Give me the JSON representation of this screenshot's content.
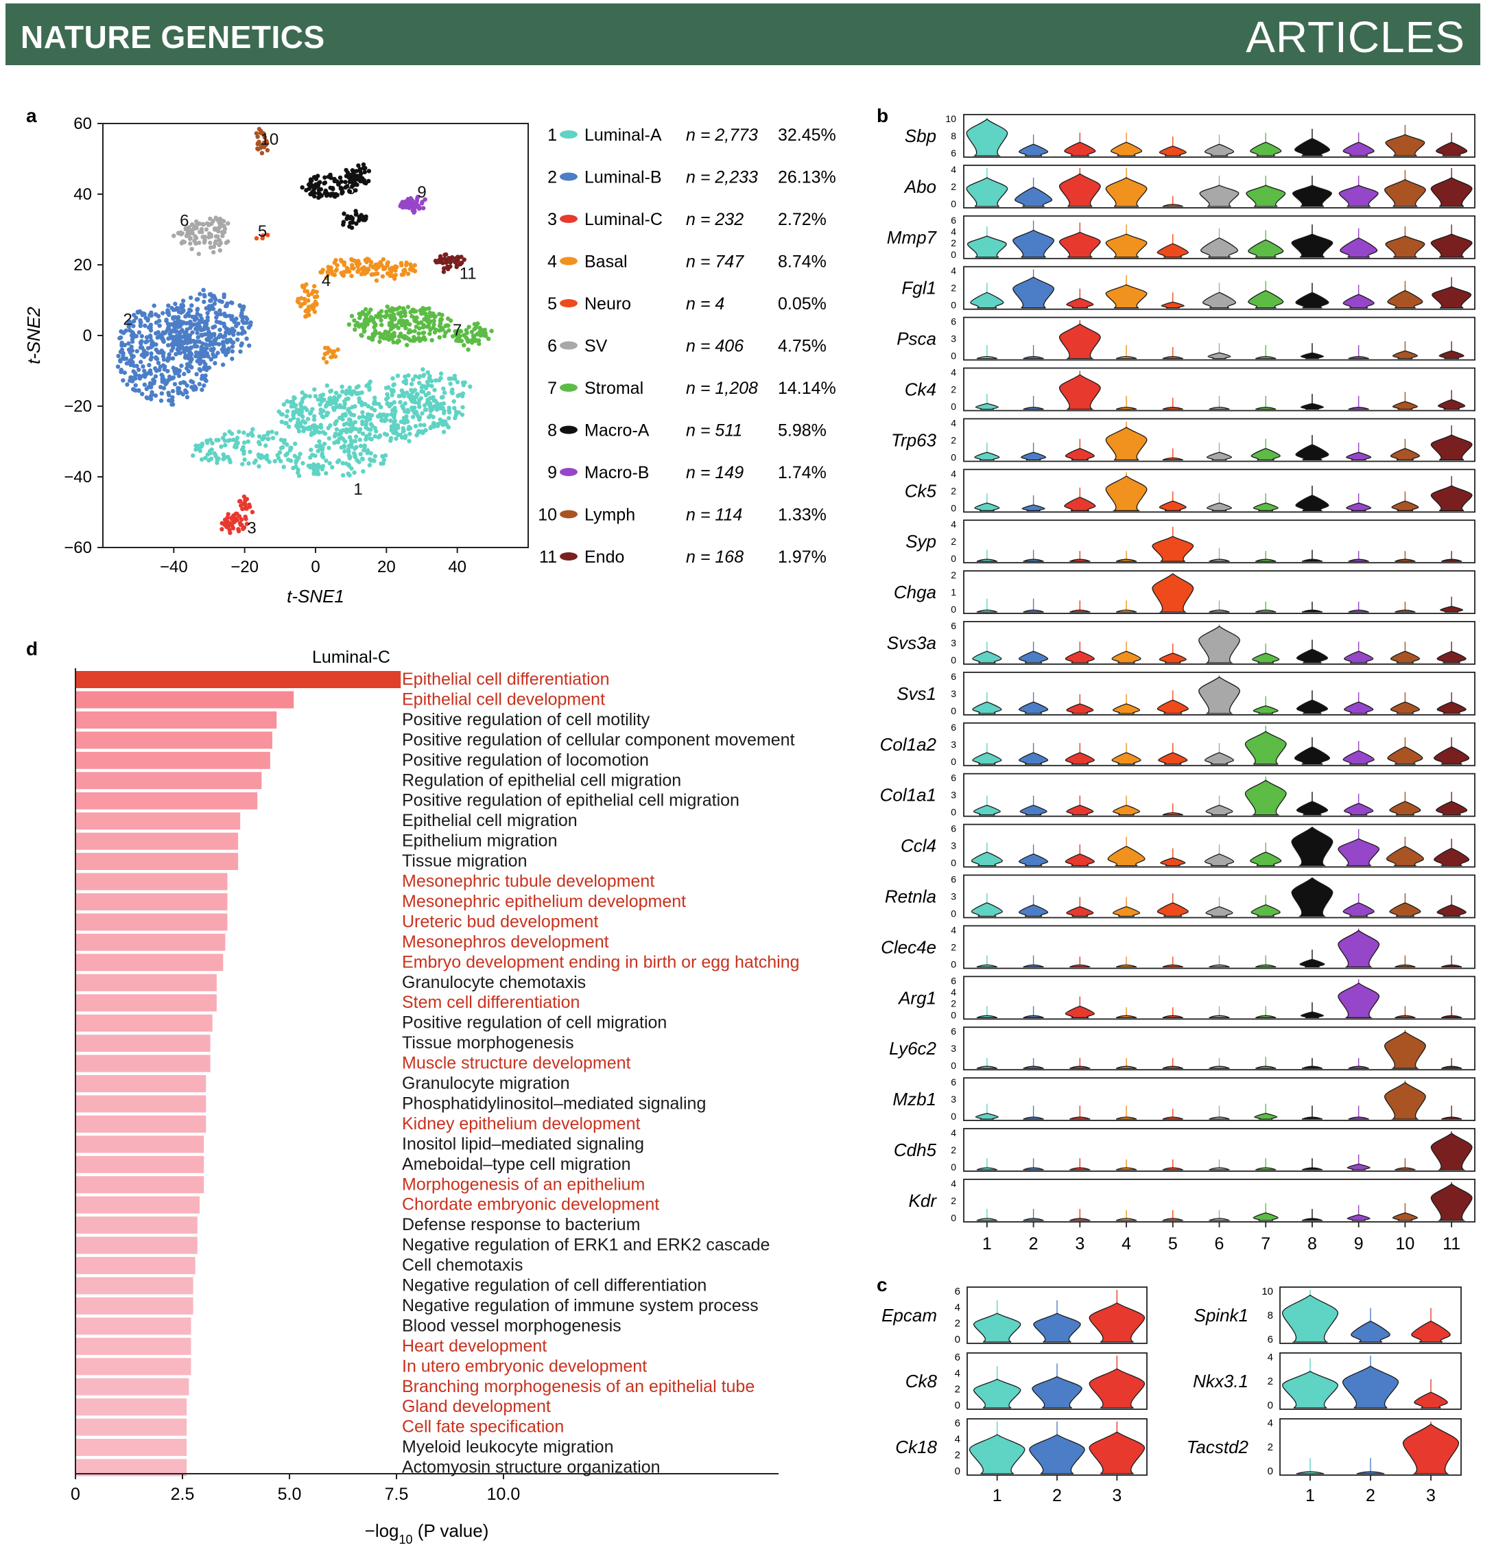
{
  "header": {
    "journal": "NATURE GENETICS",
    "section": "ARTICLES"
  },
  "colors": {
    "banner": "#3d6b52",
    "clusters": [
      "#5fd3c4",
      "#4c7ec7",
      "#e8392f",
      "#f2921e",
      "#ee4a1c",
      "#a8a8a8",
      "#5cbc46",
      "#111111",
      "#9646c8",
      "#aa5424",
      "#7a1f1f"
    ]
  },
  "panels": {
    "a": "a",
    "b": "b",
    "c": "c",
    "d": "d"
  },
  "chart_data": [
    {
      "id": "a",
      "type": "scatter",
      "xlabel": "t-SNE1",
      "ylabel": "t-SNE2",
      "xlim": [
        -60,
        60
      ],
      "ylim": [
        -60,
        60
      ],
      "xticks": [
        -40,
        -20,
        0,
        20,
        40
      ],
      "yticks": [
        -60,
        -40,
        -20,
        0,
        20,
        40,
        60
      ],
      "clusters": [
        {
          "id": "1",
          "name": "Luminal-A",
          "n": "n = 2,773",
          "pct": "32.45%",
          "label_at": [
            12,
            -45
          ]
        },
        {
          "id": "2",
          "name": "Luminal-B",
          "n": "n = 2,233",
          "pct": "26.13%",
          "label_at": [
            -53,
            3
          ]
        },
        {
          "id": "3",
          "name": "Luminal-C",
          "n": "n = 232",
          "pct": "2.72%",
          "label_at": [
            -18,
            -56
          ]
        },
        {
          "id": "4",
          "name": "Basal",
          "n": "n = 747",
          "pct": "8.74%",
          "label_at": [
            3,
            14
          ]
        },
        {
          "id": "5",
          "name": "Neuro",
          "n": "n = 4",
          "pct": "0.05%",
          "label_at": [
            -15,
            28
          ]
        },
        {
          "id": "6",
          "name": "SV",
          "n": "n = 406",
          "pct": "4.75%",
          "label_at": [
            -37,
            31
          ]
        },
        {
          "id": "7",
          "name": "Stromal",
          "n": "n = 1,208",
          "pct": "14.14%",
          "label_at": [
            40,
            0
          ]
        },
        {
          "id": "8",
          "name": "Macro-A",
          "n": "n = 511",
          "pct": "5.98%",
          "label_at": [
            10,
            40
          ]
        },
        {
          "id": "9",
          "name": "Macro-B",
          "n": "n = 149",
          "pct": "1.74%",
          "label_at": [
            30,
            39
          ]
        },
        {
          "id": "10",
          "name": "Lymph",
          "n": "n = 114",
          "pct": "1.33%",
          "label_at": [
            -13,
            54
          ]
        },
        {
          "id": "11",
          "name": "Endo",
          "n": "n = 168",
          "pct": "1.97%",
          "label_at": [
            43,
            16
          ]
        }
      ]
    },
    {
      "id": "b",
      "type": "violin",
      "categories": [
        "1",
        "2",
        "3",
        "4",
        "5",
        "6",
        "7",
        "8",
        "9",
        "10",
        "11"
      ],
      "genes": [
        {
          "name": "Sbp",
          "yticks": [
            "10",
            "8",
            "6"
          ],
          "levels": [
            0.95,
            0.3,
            0.35,
            0.35,
            0.25,
            0.3,
            0.35,
            0.45,
            0.35,
            0.55,
            0.35
          ]
        },
        {
          "name": "Abo",
          "yticks": [
            "4",
            "2",
            "0"
          ],
          "levels": [
            0.75,
            0.5,
            0.85,
            0.75,
            0.02,
            0.55,
            0.55,
            0.55,
            0.55,
            0.7,
            0.75
          ]
        },
        {
          "name": "Mmp7",
          "yticks": [
            "6",
            "4",
            "2",
            "0"
          ],
          "levels": [
            0.55,
            0.7,
            0.65,
            0.6,
            0.35,
            0.5,
            0.45,
            0.6,
            0.5,
            0.55,
            0.6
          ]
        },
        {
          "name": "Fgl1",
          "yticks": [
            "4",
            "2",
            "0"
          ],
          "levels": [
            0.4,
            0.8,
            0.25,
            0.6,
            0.15,
            0.4,
            0.45,
            0.4,
            0.35,
            0.45,
            0.55
          ]
        },
        {
          "name": "Psca",
          "yticks": [
            "6",
            "3",
            "0"
          ],
          "levels": [
            0.1,
            0.1,
            0.9,
            0.1,
            0.05,
            0.15,
            0.1,
            0.15,
            0.1,
            0.2,
            0.2
          ]
        },
        {
          "name": "Ck4",
          "yticks": [
            "4",
            "2",
            "0"
          ],
          "levels": [
            0.15,
            0.1,
            0.9,
            0.1,
            0.05,
            0.1,
            0.1,
            0.15,
            0.1,
            0.2,
            0.25
          ]
        },
        {
          "name": "Trp63",
          "yticks": [
            "4",
            "2",
            "0"
          ],
          "levels": [
            0.2,
            0.2,
            0.3,
            0.85,
            0.05,
            0.2,
            0.3,
            0.4,
            0.2,
            0.3,
            0.65
          ]
        },
        {
          "name": "Ck5",
          "yticks": [
            "4",
            "2",
            "0"
          ],
          "levels": [
            0.2,
            0.15,
            0.35,
            0.9,
            0.25,
            0.2,
            0.2,
            0.4,
            0.2,
            0.25,
            0.65
          ]
        },
        {
          "name": "Syp",
          "yticks": [
            "4",
            "2",
            "0"
          ],
          "levels": [
            0.05,
            0.05,
            0.02,
            0.02,
            0.65,
            0.1,
            0.02,
            0.05,
            0.02,
            0.02,
            0.02
          ]
        },
        {
          "name": "Chga",
          "yticks": [
            "2",
            "1",
            "0"
          ],
          "levels": [
            0.1,
            0.1,
            0.05,
            0.05,
            1.0,
            0.05,
            0.02,
            0.02,
            0.02,
            0.02,
            0.15
          ]
        },
        {
          "name": "Svs3a",
          "yticks": [
            "6",
            "3",
            "0"
          ],
          "levels": [
            0.3,
            0.3,
            0.3,
            0.3,
            0.25,
            0.95,
            0.25,
            0.35,
            0.3,
            0.3,
            0.3
          ]
        },
        {
          "name": "Svs1",
          "yticks": [
            "6",
            "3",
            "0"
          ],
          "levels": [
            0.3,
            0.3,
            0.25,
            0.25,
            0.35,
            0.95,
            0.2,
            0.35,
            0.3,
            0.3,
            0.3
          ]
        },
        {
          "name": "Col1a2",
          "yticks": [
            "6",
            "3",
            "0"
          ],
          "levels": [
            0.3,
            0.3,
            0.3,
            0.3,
            0.3,
            0.3,
            0.85,
            0.45,
            0.35,
            0.45,
            0.45
          ]
        },
        {
          "name": "Col1a1",
          "yticks": [
            "6",
            "3",
            "0"
          ],
          "levels": [
            0.25,
            0.25,
            0.25,
            0.25,
            0.05,
            0.25,
            0.9,
            0.35,
            0.3,
            0.35,
            0.35
          ]
        },
        {
          "name": "Ccl4",
          "yticks": [
            "6",
            "3",
            "0"
          ],
          "levels": [
            0.35,
            0.3,
            0.3,
            0.5,
            0.2,
            0.3,
            0.35,
            1.0,
            0.7,
            0.5,
            0.45
          ]
        },
        {
          "name": "Retnla",
          "yticks": [
            "6",
            "3",
            "0"
          ],
          "levels": [
            0.35,
            0.3,
            0.25,
            0.25,
            0.35,
            0.25,
            0.3,
            1.0,
            0.35,
            0.35,
            0.3
          ]
        },
        {
          "name": "Clec4e",
          "yticks": [
            "4",
            "2",
            "0"
          ],
          "levels": [
            0.05,
            0.05,
            0.02,
            0.02,
            0.02,
            0.05,
            0.05,
            0.2,
            0.95,
            0.05,
            0.05
          ]
        },
        {
          "name": "Arg1",
          "yticks": [
            "6",
            "4",
            "2",
            "0"
          ],
          "levels": [
            0.05,
            0.05,
            0.3,
            0.02,
            0.02,
            0.05,
            0.05,
            0.15,
            0.9,
            0.05,
            0.05
          ]
        },
        {
          "name": "Ly6c2",
          "yticks": [
            "6",
            "3",
            "0"
          ],
          "levels": [
            0.02,
            0.02,
            0.02,
            0.02,
            0.02,
            0.02,
            0.05,
            0.02,
            0.02,
            0.95,
            0.02
          ]
        },
        {
          "name": "Mzb1",
          "yticks": [
            "6",
            "3",
            "0"
          ],
          "levels": [
            0.15,
            0.1,
            0.1,
            0.1,
            0.02,
            0.1,
            0.15,
            0.1,
            0.1,
            0.95,
            0.1
          ]
        },
        {
          "name": "Cdh5",
          "yticks": [
            "4",
            "2",
            "0"
          ],
          "levels": [
            0.05,
            0.05,
            0.05,
            0.02,
            0.02,
            0.02,
            0.05,
            0.05,
            0.15,
            0.05,
            0.95
          ]
        },
        {
          "name": "Kdr",
          "yticks": [
            "4",
            "2",
            "0"
          ],
          "levels": [
            0.05,
            0.05,
            0.05,
            0.02,
            0.02,
            0.02,
            0.2,
            0.05,
            0.15,
            0.2,
            0.95
          ]
        }
      ]
    },
    {
      "id": "c",
      "type": "violin",
      "categories": [
        "1",
        "2",
        "3"
      ],
      "genes_left": [
        {
          "name": "Epcam",
          "yticks": [
            "6",
            "4",
            "2",
            "0"
          ],
          "levels": [
            0.55,
            0.55,
            0.75
          ]
        },
        {
          "name": "Ck8",
          "yticks": [
            "6",
            "4",
            "2",
            "0"
          ],
          "levels": [
            0.55,
            0.6,
            0.75
          ]
        },
        {
          "name": "Ck18",
          "yticks": [
            "6",
            "4",
            "2",
            "0"
          ],
          "levels": [
            0.75,
            0.75,
            0.8
          ]
        }
      ],
      "genes_right": [
        {
          "name": "Spink1",
          "yticks": [
            "10",
            "8",
            "6"
          ],
          "levels": [
            0.9,
            0.4,
            0.4
          ]
        },
        {
          "name": "Nkx3.1",
          "yticks": [
            "4",
            "2",
            "0"
          ],
          "levels": [
            0.7,
            0.8,
            0.3
          ]
        },
        {
          "name": "Tacstd2",
          "yticks": [
            "4",
            "2",
            "0"
          ],
          "levels": [
            0.05,
            0.05,
            0.95
          ]
        }
      ]
    },
    {
      "id": "d",
      "type": "bar",
      "orientation": "horizontal",
      "title": "Luminal-C",
      "xlabel": "−log",
      "xlabel_sub": "10",
      "xlabel_rest": " (P value)",
      "xlim": [
        0,
        10
      ],
      "xticks": [
        "0",
        "2.5",
        "5.0",
        "7.5",
        "10.0"
      ],
      "bars": [
        {
          "term": "Epithelial cell differentiation",
          "value": 7.6,
          "highlight": true
        },
        {
          "term": "Epithelial cell development",
          "value": 5.1,
          "highlight": true
        },
        {
          "term": "Positive regulation of cell motility",
          "value": 4.7,
          "highlight": false
        },
        {
          "term": "Positive regulation of cellular component movement",
          "value": 4.6,
          "highlight": false
        },
        {
          "term": "Positive regulation of locomotion",
          "value": 4.55,
          "highlight": false
        },
        {
          "term": "Regulation of epithelial cell migration",
          "value": 4.35,
          "highlight": false
        },
        {
          "term": "Positive regulation of epithelial cell migration",
          "value": 4.25,
          "highlight": false
        },
        {
          "term": "Epithelial cell migration",
          "value": 3.85,
          "highlight": false
        },
        {
          "term": "Epithelium migration",
          "value": 3.8,
          "highlight": false
        },
        {
          "term": "Tissue migration",
          "value": 3.8,
          "highlight": false
        },
        {
          "term": "Mesonephric tubule development",
          "value": 3.55,
          "highlight": true
        },
        {
          "term": "Mesonephric epithelium development",
          "value": 3.55,
          "highlight": true
        },
        {
          "term": "Ureteric bud development",
          "value": 3.55,
          "highlight": true
        },
        {
          "term": "Mesonephros development",
          "value": 3.5,
          "highlight": true
        },
        {
          "term": "Embryo development ending in birth or egg hatching",
          "value": 3.45,
          "highlight": true
        },
        {
          "term": "Granulocyte chemotaxis",
          "value": 3.3,
          "highlight": false
        },
        {
          "term": "Stem cell differentiation",
          "value": 3.3,
          "highlight": true
        },
        {
          "term": "Positive regulation of cell migration",
          "value": 3.2,
          "highlight": false
        },
        {
          "term": "Tissue morphogenesis",
          "value": 3.15,
          "highlight": false
        },
        {
          "term": "Muscle structure development",
          "value": 3.15,
          "highlight": true
        },
        {
          "term": "Granulocyte migration",
          "value": 3.05,
          "highlight": false
        },
        {
          "term": "Phosphatidylinositol–mediated signaling",
          "value": 3.05,
          "highlight": false
        },
        {
          "term": "Kidney epithelium development",
          "value": 3.05,
          "highlight": true
        },
        {
          "term": "Inositol lipid–mediated signaling",
          "value": 3.0,
          "highlight": false
        },
        {
          "term": "Ameboidal–type cell migration",
          "value": 3.0,
          "highlight": false
        },
        {
          "term": "Morphogenesis of an epithelium",
          "value": 3.0,
          "highlight": true
        },
        {
          "term": "Chordate embryonic development",
          "value": 2.9,
          "highlight": true
        },
        {
          "term": "Defense response to bacterium",
          "value": 2.85,
          "highlight": false
        },
        {
          "term": "Negative regulation of ERK1 and ERK2 cascade",
          "value": 2.85,
          "highlight": false
        },
        {
          "term": "Cell chemotaxis",
          "value": 2.8,
          "highlight": false
        },
        {
          "term": "Negative regulation of cell differentiation",
          "value": 2.75,
          "highlight": false
        },
        {
          "term": "Negative regulation of immune system process",
          "value": 2.75,
          "highlight": false
        },
        {
          "term": "Blood vessel morphogenesis",
          "value": 2.7,
          "highlight": false
        },
        {
          "term": "Heart development",
          "value": 2.7,
          "highlight": true
        },
        {
          "term": "In utero embryonic development",
          "value": 2.7,
          "highlight": true
        },
        {
          "term": "Branching morphogenesis of an epithelial tube",
          "value": 2.65,
          "highlight": true
        },
        {
          "term": "Gland development",
          "value": 2.6,
          "highlight": true
        },
        {
          "term": "Cell fate specification",
          "value": 2.6,
          "highlight": true
        },
        {
          "term": "Myeloid leukocyte migration",
          "value": 2.6,
          "highlight": false
        },
        {
          "term": "Actomyosin structure organization",
          "value": 2.6,
          "highlight": false
        }
      ]
    }
  ]
}
